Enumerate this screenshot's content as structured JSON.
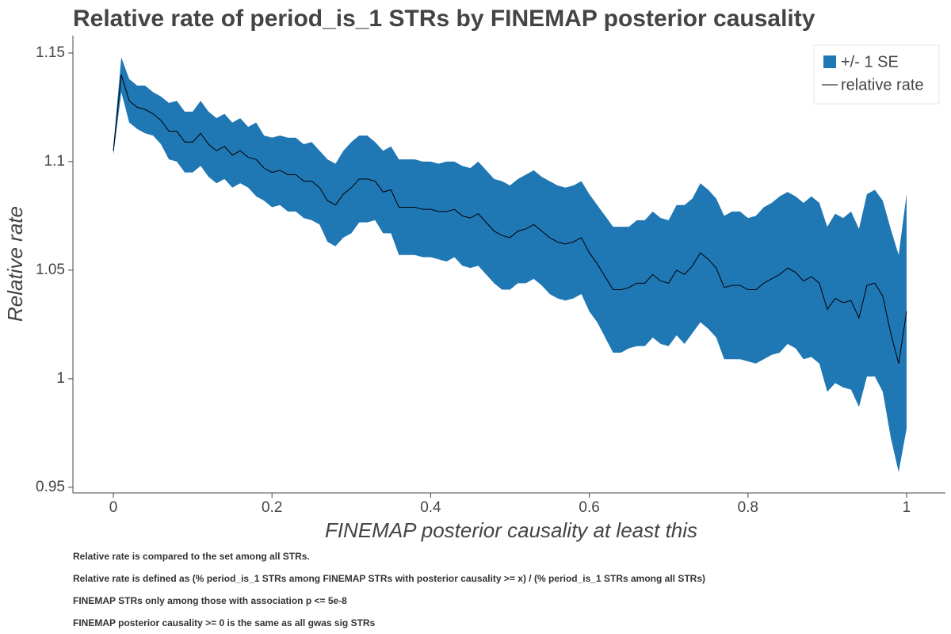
{
  "chart_data": {
    "type": "line",
    "title": "Relative rate of period_is_1 STRs by FINEMAP posterior causality",
    "x_label": "FINEMAP posterior causality at least this",
    "y_label": "Relative rate",
    "notes": [
      "Relative rate is compared to the set among all STRs.",
      "Relative rate is defined as (% period_is_1 STRs among FINEMAP STRs with posterior causality >= x) / (% period_is_1 STRs among all STRs)",
      "FINEMAP STRs only among those with association p <= 5e-8",
      "FINEMAP posterior causality >= 0 is the same as all gwas sig STRs"
    ],
    "legend": "top-right",
    "x": [
      0,
      0.01,
      0.02,
      0.03,
      0.04,
      0.05,
      0.06,
      0.07,
      0.08,
      0.09,
      0.1,
      0.11,
      0.12,
      0.13,
      0.14,
      0.15,
      0.16,
      0.17,
      0.18,
      0.19,
      0.2,
      0.21,
      0.22,
      0.23,
      0.24,
      0.25,
      0.26,
      0.27,
      0.28,
      0.29,
      0.3,
      0.31,
      0.32,
      0.33,
      0.34,
      0.35,
      0.36,
      0.37,
      0.38,
      0.39,
      0.4,
      0.41,
      0.42,
      0.43,
      0.44,
      0.45,
      0.46,
      0.47,
      0.48,
      0.49,
      0.5,
      0.51,
      0.52,
      0.53,
      0.54,
      0.55,
      0.56,
      0.57,
      0.58,
      0.59,
      0.6,
      0.61,
      0.62,
      0.63,
      0.64,
      0.65,
      0.66,
      0.67,
      0.68,
      0.69,
      0.7,
      0.71,
      0.72,
      0.73,
      0.74,
      0.75,
      0.76,
      0.77,
      0.78,
      0.79,
      0.8,
      0.81,
      0.82,
      0.83,
      0.84,
      0.85,
      0.86,
      0.87,
      0.88,
      0.89,
      0.9,
      0.91,
      0.92,
      0.93,
      0.94,
      0.95,
      0.96,
      0.97,
      0.98,
      0.99,
      1
    ],
    "series": [
      {
        "name": "+/- 1 SE",
        "color": "#1f77b4",
        "upper": [
          1.107,
          1.148,
          1.138,
          1.135,
          1.135,
          1.132,
          1.13,
          1.127,
          1.128,
          1.123,
          1.123,
          1.128,
          1.123,
          1.12,
          1.122,
          1.118,
          1.12,
          1.116,
          1.118,
          1.112,
          1.111,
          1.112,
          1.111,
          1.111,
          1.108,
          1.109,
          1.105,
          1.101,
          1.099,
          1.105,
          1.109,
          1.112,
          1.112,
          1.109,
          1.105,
          1.107,
          1.101,
          1.101,
          1.101,
          1.1,
          1.1,
          1.099,
          1.1,
          1.1,
          1.098,
          1.097,
          1.1,
          1.096,
          1.092,
          1.091,
          1.089,
          1.092,
          1.094,
          1.096,
          1.093,
          1.091,
          1.089,
          1.088,
          1.089,
          1.091,
          1.085,
          1.08,
          1.075,
          1.07,
          1.07,
          1.07,
          1.073,
          1.073,
          1.077,
          1.074,
          1.073,
          1.08,
          1.08,
          1.083,
          1.09,
          1.087,
          1.083,
          1.075,
          1.077,
          1.077,
          1.074,
          1.075,
          1.079,
          1.081,
          1.084,
          1.086,
          1.084,
          1.081,
          1.084,
          1.081,
          1.07,
          1.076,
          1.074,
          1.077,
          1.069,
          1.085,
          1.087,
          1.082,
          1.069,
          1.057,
          1.085
        ],
        "lower": [
          1.103,
          1.132,
          1.118,
          1.115,
          1.113,
          1.112,
          1.108,
          1.101,
          1.1,
          1.095,
          1.095,
          1.098,
          1.093,
          1.09,
          1.092,
          1.088,
          1.09,
          1.088,
          1.084,
          1.082,
          1.079,
          1.08,
          1.077,
          1.077,
          1.074,
          1.073,
          1.071,
          1.063,
          1.061,
          1.065,
          1.067,
          1.072,
          1.072,
          1.073,
          1.067,
          1.067,
          1.057,
          1.057,
          1.057,
          1.056,
          1.056,
          1.055,
          1.054,
          1.056,
          1.052,
          1.051,
          1.052,
          1.048,
          1.044,
          1.041,
          1.041,
          1.044,
          1.044,
          1.046,
          1.043,
          1.039,
          1.037,
          1.036,
          1.037,
          1.039,
          1.031,
          1.026,
          1.019,
          1.012,
          1.012,
          1.014,
          1.015,
          1.015,
          1.019,
          1.016,
          1.015,
          1.02,
          1.016,
          1.021,
          1.026,
          1.023,
          1.019,
          1.009,
          1.009,
          1.009,
          1.008,
          1.007,
          1.009,
          1.011,
          1.012,
          1.016,
          1.014,
          1.009,
          1.01,
          1.007,
          0.994,
          0.998,
          0.996,
          0.995,
          0.987,
          1.001,
          1.001,
          0.994,
          0.973,
          0.957,
          0.977
        ]
      },
      {
        "name": "relative rate",
        "color": "#000000",
        "values": [
          1.105,
          1.14,
          1.128,
          1.125,
          1.124,
          1.122,
          1.119,
          1.114,
          1.114,
          1.109,
          1.109,
          1.113,
          1.108,
          1.105,
          1.107,
          1.103,
          1.105,
          1.102,
          1.101,
          1.097,
          1.095,
          1.096,
          1.094,
          1.094,
          1.091,
          1.091,
          1.088,
          1.082,
          1.08,
          1.085,
          1.088,
          1.092,
          1.092,
          1.091,
          1.086,
          1.087,
          1.079,
          1.079,
          1.079,
          1.078,
          1.078,
          1.077,
          1.077,
          1.078,
          1.075,
          1.074,
          1.076,
          1.072,
          1.068,
          1.066,
          1.065,
          1.068,
          1.069,
          1.071,
          1.068,
          1.065,
          1.063,
          1.062,
          1.063,
          1.065,
          1.058,
          1.053,
          1.047,
          1.041,
          1.041,
          1.042,
          1.044,
          1.044,
          1.048,
          1.045,
          1.044,
          1.05,
          1.048,
          1.052,
          1.058,
          1.055,
          1.051,
          1.042,
          1.043,
          1.043,
          1.041,
          1.041,
          1.044,
          1.046,
          1.048,
          1.051,
          1.049,
          1.045,
          1.047,
          1.044,
          1.032,
          1.037,
          1.035,
          1.036,
          1.028,
          1.043,
          1.044,
          1.038,
          1.021,
          1.007,
          1.031
        ]
      }
    ],
    "xlim": [
      -0.051,
      1.049
    ],
    "ylim": [
      0.9474,
      1.158
    ],
    "xticks": [
      0,
      0.2,
      0.4,
      0.6,
      0.8,
      1
    ],
    "yticks": [
      0.95,
      1,
      1.05,
      1.1,
      1.15
    ]
  }
}
